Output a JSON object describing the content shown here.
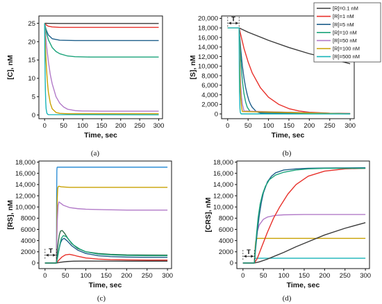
{
  "colors": {
    "R0.1": "#3a3a3a",
    "R1": "#e8302a",
    "R5": "#1f5f8b",
    "R10": "#1aa37a",
    "R50": "#b27ac8",
    "R100": "#c8a000",
    "R500": "#17b4b8",
    "RS_line1": "#2f8fd6",
    "RS_line3": "#2e6e4a"
  },
  "chart_data": [
    {
      "id": "a",
      "type": "line",
      "sublabel": "(a)",
      "xlabel": "Time, sec",
      "ylabel": "[C], nM",
      "xlim": [
        -15,
        310
      ],
      "ylim": [
        -1,
        27
      ],
      "xticks": [
        0,
        50,
        100,
        150,
        200,
        250,
        300
      ],
      "yticks": [
        0,
        5,
        10,
        15,
        20,
        25
      ],
      "grid": false,
      "series": [
        {
          "name": "[R]=0.1 nM",
          "colorKey": "R0.1",
          "x": [
            0,
            2,
            5,
            10,
            20,
            40,
            80,
            150,
            300
          ],
          "y": [
            25,
            25,
            24.99,
            24.98,
            24.97,
            24.96,
            24.96,
            24.96,
            24.96
          ]
        },
        {
          "name": "[R]=1 nM",
          "colorKey": "R1",
          "x": [
            0,
            2,
            5,
            10,
            20,
            40,
            80,
            150,
            300
          ],
          "y": [
            25,
            24.8,
            24.5,
            24.2,
            24.0,
            23.9,
            23.9,
            23.9,
            23.9
          ]
        },
        {
          "name": "[R]=5 nM",
          "colorKey": "R5",
          "x": [
            0,
            2,
            5,
            10,
            20,
            40,
            80,
            150,
            300
          ],
          "y": [
            25,
            24.0,
            23.0,
            21.8,
            20.8,
            20.4,
            20.3,
            20.3,
            20.3
          ]
        },
        {
          "name": "[R]=10 nM",
          "colorKey": "R10",
          "x": [
            0,
            2,
            5,
            10,
            20,
            30,
            40,
            60,
            80,
            120,
            150,
            300
          ],
          "y": [
            25,
            24.0,
            22.3,
            20.5,
            18.4,
            17.3,
            16.7,
            16.1,
            15.9,
            15.8,
            15.8,
            15.8
          ]
        },
        {
          "name": "[R]=50 nM",
          "colorKey": "R50",
          "x": [
            0,
            2,
            5,
            10,
            15,
            20,
            30,
            40,
            50,
            60,
            80,
            100,
            150,
            300
          ],
          "y": [
            25,
            22.5,
            19.0,
            14.5,
            11.0,
            8.5,
            5.0,
            3.2,
            2.2,
            1.6,
            1.2,
            1.1,
            1.05,
            1.05
          ]
        },
        {
          "name": "[R]=100 nM",
          "colorKey": "R100",
          "x": [
            0,
            1,
            2,
            4,
            6,
            8,
            10,
            15,
            20,
            30,
            40,
            60,
            300
          ],
          "y": [
            25,
            22,
            19,
            14.5,
            11,
            8.3,
            6.2,
            3.2,
            1.7,
            0.7,
            0.45,
            0.35,
            0.35
          ]
        },
        {
          "name": "[R]=500 nM",
          "colorKey": "R500",
          "x": [
            0,
            0.5,
            1,
            1.5,
            2,
            3,
            4,
            6,
            8,
            10,
            300
          ],
          "y": [
            25,
            19,
            14,
            10,
            7,
            3.5,
            1.7,
            0.5,
            0.2,
            0.1,
            0.05
          ]
        }
      ]
    },
    {
      "id": "b",
      "type": "line",
      "sublabel": "(b)",
      "xlabel": "Time, sec",
      "ylabel": "[S], nM",
      "xlim": [
        -15,
        310
      ],
      "ylim": [
        -1000,
        20500
      ],
      "xticks": [
        0,
        50,
        100,
        150,
        200,
        250,
        300
      ],
      "yticks": [
        0,
        2000,
        4000,
        6000,
        8000,
        10000,
        12000,
        14000,
        16000,
        18000,
        20000
      ],
      "ytickLabels": [
        "0",
        "2,000",
        "4,000",
        "6,000",
        "8,000",
        "10,000",
        "12,000",
        "14,000",
        "16,000",
        "18,000",
        "20,000"
      ],
      "grid": false,
      "annotation": {
        "text": "T",
        "x0": 0,
        "x1": 28,
        "y": 19000
      },
      "legend": {
        "placement": "top-right",
        "entries": [
          {
            "label": "[R]=0.1 nM",
            "colorKey": "R0.1"
          },
          {
            "label": "[R]=1 nM",
            "colorKey": "R1"
          },
          {
            "label": "[R]=5 nM",
            "colorKey": "R5"
          },
          {
            "label": "[R]=10 nM",
            "colorKey": "R10"
          },
          {
            "label": "[R]=50 nM",
            "colorKey": "R50"
          },
          {
            "label": "[R]=100 nM",
            "colorKey": "R100"
          },
          {
            "label": "[R]=500 nM",
            "colorKey": "R500"
          }
        ]
      },
      "series": [
        {
          "name": "[R]=0.1 nM",
          "colorKey": "R0.1",
          "x": [
            0,
            28,
            50,
            100,
            150,
            200,
            250,
            300
          ],
          "y": [
            18000,
            18000,
            17100,
            15400,
            13900,
            12600,
            11600,
            10500
          ]
        },
        {
          "name": "[R]=1 nM",
          "colorKey": "R1",
          "x": [
            0,
            28,
            40,
            50,
            60,
            80,
            100,
            125,
            150,
            175,
            200,
            250,
            300
          ],
          "y": [
            18000,
            18000,
            13700,
            10900,
            8600,
            5500,
            3500,
            2000,
            1100,
            600,
            350,
            150,
            100
          ]
        },
        {
          "name": "[R]=5 nM",
          "colorKey": "R5",
          "x": [
            0,
            28,
            32,
            36,
            40,
            44,
            48,
            52,
            56,
            60,
            70,
            80,
            300
          ],
          "y": [
            18000,
            18000,
            13500,
            10000,
            7500,
            5500,
            4000,
            2800,
            2000,
            1400,
            500,
            200,
            50
          ]
        },
        {
          "name": "[R]=10 nM",
          "colorKey": "R10",
          "x": [
            0,
            28,
            30,
            32,
            34,
            36,
            38,
            40,
            44,
            48,
            55,
            300
          ],
          "y": [
            18000,
            18000,
            14500,
            11500,
            9000,
            7000,
            5500,
            4200,
            2500,
            1400,
            500,
            50
          ]
        },
        {
          "name": "[R]=50 nM",
          "colorKey": "R50",
          "x": [
            0,
            28,
            29,
            30,
            31,
            32,
            34,
            36,
            40,
            300
          ],
          "y": [
            18000,
            18000,
            14000,
            10500,
            8000,
            6000,
            3500,
            2000,
            600,
            0
          ]
        },
        {
          "name": "[R]=100 nM",
          "colorKey": "R100",
          "x": [
            0,
            28,
            29,
            30,
            31,
            32,
            34,
            36,
            300
          ],
          "y": [
            18000,
            18000,
            12000,
            8000,
            5200,
            3400,
            1400,
            500,
            0
          ]
        },
        {
          "name": "[R]=500 nM",
          "colorKey": "R500",
          "x": [
            0,
            28,
            28.5,
            29,
            30,
            31,
            33,
            300
          ],
          "y": [
            18000,
            18000,
            9000,
            4500,
            1200,
            300,
            0,
            0
          ]
        }
      ]
    },
    {
      "id": "c",
      "type": "line",
      "sublabel": "(c)",
      "xlabel": "Time, sec",
      "ylabel": "[RS], nM",
      "xlim": [
        -15,
        310
      ],
      "ylim": [
        -1000,
        18200
      ],
      "xticks": [
        0,
        50,
        100,
        150,
        200,
        250,
        300
      ],
      "yticks": [
        0,
        2000,
        4000,
        6000,
        8000,
        10000,
        12000,
        14000,
        16000,
        18000
      ],
      "ytickLabels": [
        "0",
        "2000",
        "4000",
        "6000",
        "8000",
        "10,000",
        "12,000",
        "14,000",
        "16,000",
        "18,000"
      ],
      "grid": false,
      "annotation": {
        "text": "T",
        "x0": 0,
        "x1": 28,
        "y": 1400
      },
      "series": [
        {
          "colorKey": "RS_line1",
          "x": [
            0,
            28,
            28.5,
            29,
            29.5,
            30,
            300
          ],
          "y": [
            0,
            0,
            12000,
            16500,
            17000,
            17100,
            17100
          ]
        },
        {
          "colorKey": "R100",
          "x": [
            0,
            28,
            29,
            30,
            31,
            32,
            34,
            40,
            60,
            100,
            300
          ],
          "y": [
            0,
            0,
            7000,
            11500,
            13200,
            13600,
            13700,
            13600,
            13500,
            13500,
            13500
          ]
        },
        {
          "colorKey": "R50",
          "x": [
            0,
            28,
            29,
            30,
            32,
            34,
            38,
            45,
            60,
            80,
            100,
            150,
            200,
            300
          ],
          "y": [
            0,
            0,
            4000,
            7500,
            10200,
            10900,
            10700,
            10300,
            9900,
            9700,
            9600,
            9500,
            9450,
            9450
          ]
        },
        {
          "colorKey": "RS_line3",
          "x": [
            0,
            28,
            30,
            32,
            35,
            38,
            42,
            48,
            55,
            65,
            80,
            100,
            130,
            160,
            200,
            250,
            300
          ],
          "y": [
            0,
            0,
            1800,
            3500,
            5000,
            5700,
            5800,
            5300,
            4500,
            3500,
            2600,
            2000,
            1700,
            1550,
            1450,
            1420,
            1400
          ]
        },
        {
          "colorKey": "R5",
          "x": [
            0,
            28,
            31,
            34,
            38,
            42,
            47,
            55,
            65,
            80,
            100,
            130,
            160,
            200,
            250,
            300
          ],
          "y": [
            0,
            0,
            1200,
            2400,
            3600,
            4200,
            4400,
            3900,
            3100,
            2300,
            1700,
            1300,
            1150,
            1050,
            1000,
            1000
          ]
        },
        {
          "colorKey": "R1",
          "x": [
            0,
            28,
            35,
            42,
            50,
            60,
            70,
            80,
            100,
            130,
            160,
            200,
            250,
            300
          ],
          "y": [
            0,
            0,
            600,
            1100,
            1450,
            1550,
            1400,
            1200,
            900,
            700,
            600,
            560,
            530,
            520
          ]
        },
        {
          "colorKey": "R0.1",
          "x": [
            0,
            28,
            40,
            55,
            70,
            90,
            120,
            160,
            200,
            250,
            300
          ],
          "y": [
            0,
            0,
            150,
            270,
            320,
            340,
            340,
            335,
            330,
            330,
            330
          ]
        },
        {
          "colorKey": "R10",
          "x": [
            0,
            28,
            32,
            36,
            40,
            45,
            52,
            60,
            70,
            85,
            100,
            130,
            160,
            200,
            250,
            300
          ],
          "y": [
            0,
            0,
            1500,
            3200,
            4400,
            4900,
            4700,
            4000,
            3200,
            2500,
            2000,
            1600,
            1450,
            1350,
            1300,
            1300
          ]
        }
      ]
    },
    {
      "id": "d",
      "type": "line",
      "sublabel": "(d)",
      "xlabel": "Time, sec",
      "ylabel": "[CRS], nM",
      "xlim": [
        -15,
        310
      ],
      "ylim": [
        -1000,
        18200
      ],
      "xticks": [
        0,
        50,
        100,
        150,
        200,
        250,
        300
      ],
      "yticks": [
        0,
        2000,
        4000,
        6000,
        8000,
        10000,
        12000,
        14000,
        16000,
        18000
      ],
      "ytickLabels": [
        "0",
        "2000",
        "4000",
        "6000",
        "8000",
        "10,000",
        "12,000",
        "14,000",
        "16,000",
        "18,000"
      ],
      "grid": false,
      "annotation": {
        "text": "T",
        "x0": 0,
        "x1": 28,
        "y": 1200
      },
      "series": [
        {
          "colorKey": "R500",
          "x": [
            0,
            28,
            29,
            30,
            300
          ],
          "y": [
            0,
            0,
            700,
            850,
            850
          ]
        },
        {
          "colorKey": "R100",
          "x": [
            0,
            28,
            29,
            30,
            31,
            33,
            36,
            300
          ],
          "y": [
            0,
            0,
            1800,
            3000,
            3800,
            4300,
            4400,
            4400
          ]
        },
        {
          "colorKey": "R50",
          "x": [
            0,
            28,
            30,
            32,
            35,
            40,
            50,
            60,
            80,
            100,
            150,
            200,
            300
          ],
          "y": [
            0,
            0,
            2500,
            4200,
            5600,
            6800,
            7800,
            8200,
            8500,
            8600,
            8650,
            8650,
            8650
          ]
        },
        {
          "colorKey": "R0.1",
          "x": [
            0,
            28,
            40,
            60,
            80,
            100,
            130,
            160,
            200,
            250,
            300
          ],
          "y": [
            0,
            0,
            200,
            700,
            1300,
            1900,
            2900,
            3800,
            5000,
            6200,
            7200
          ]
        },
        {
          "colorKey": "R1",
          "x": [
            0,
            28,
            35,
            45,
            60,
            75,
            90,
            110,
            130,
            160,
            200,
            250,
            300
          ],
          "y": [
            0,
            0,
            800,
            2700,
            5500,
            8000,
            10000,
            12300,
            14000,
            15500,
            16400,
            16800,
            16900
          ]
        },
        {
          "colorKey": "R5",
          "x": [
            0,
            28,
            31,
            35,
            40,
            45,
            50,
            60,
            70,
            80,
            100,
            130,
            160,
            200,
            300
          ],
          "y": [
            0,
            0,
            2500,
            5500,
            8500,
            10800,
            12500,
            14500,
            15500,
            16100,
            16600,
            16800,
            16900,
            16950,
            17000
          ]
        },
        {
          "colorKey": "R10",
          "x": [
            0,
            28,
            30,
            33,
            37,
            42,
            48,
            55,
            65,
            80,
            100,
            130,
            160,
            200,
            300
          ],
          "y": [
            0,
            0,
            2000,
            5000,
            8000,
            10500,
            12300,
            13700,
            14900,
            15700,
            16200,
            16600,
            16800,
            16900,
            16900
          ]
        }
      ]
    }
  ]
}
